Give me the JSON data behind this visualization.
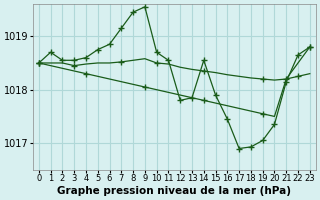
{
  "background_color": "#d8f0f0",
  "grid_color": "#b0d8d8",
  "line_color": "#1a5c1a",
  "marker_color": "#1a5c1a",
  "xlabel": "Graphe pression niveau de la mer (hPa)",
  "xlabel_fontsize": 7.5,
  "ylabel_fontsize": 7,
  "tick_fontsize": 6,
  "yticks": [
    1017,
    1018,
    1019
  ],
  "ylim": [
    1016.5,
    1019.6
  ],
  "xlim": [
    -0.5,
    23.5
  ],
  "series": [
    {
      "x": [
        0,
        1,
        2,
        3,
        4,
        5,
        6,
        7,
        8,
        9,
        10,
        11,
        12,
        13,
        14,
        15,
        16,
        17,
        18,
        19,
        20,
        21,
        22,
        23
      ],
      "y": [
        1018.5,
        1018.7,
        1018.55,
        1018.55,
        1018.6,
        1018.75,
        1018.85,
        1019.15,
        1019.45,
        1019.55,
        1018.7,
        1018.55,
        1017.8,
        1017.85,
        1018.55,
        1017.9,
        1017.45,
        1016.9,
        1016.93,
        1017.05,
        1017.35,
        1018.15,
        1018.65,
        1018.8
      ],
      "markers": [
        0,
        1,
        2,
        3,
        4,
        5,
        6,
        7,
        8,
        9,
        10,
        11,
        12,
        13,
        14,
        15,
        16,
        17,
        18,
        19,
        20,
        21,
        22,
        23
      ]
    },
    {
      "x": [
        0,
        1,
        2,
        3,
        4,
        5,
        6,
        7,
        8,
        9,
        10,
        11,
        12,
        13,
        14,
        15,
        16,
        17,
        18,
        19,
        20,
        21,
        22,
        23
      ],
      "y": [
        1018.5,
        1018.5,
        1018.5,
        1018.45,
        1018.48,
        1018.5,
        1018.5,
        1018.52,
        1018.55,
        1018.58,
        1018.5,
        1018.48,
        1018.42,
        1018.38,
        1018.35,
        1018.32,
        1018.28,
        1018.25,
        1018.22,
        1018.2,
        1018.18,
        1018.2,
        1018.25,
        1018.3
      ],
      "markers": [
        0,
        3,
        7,
        10,
        14,
        19,
        22
      ]
    },
    {
      "x": [
        0,
        1,
        2,
        3,
        4,
        5,
        6,
        7,
        8,
        9,
        10,
        11,
        12,
        13,
        14,
        15,
        16,
        17,
        18,
        19,
        20,
        21,
        22,
        23
      ],
      "y": [
        1018.5,
        1018.45,
        1018.4,
        1018.35,
        1018.3,
        1018.25,
        1018.2,
        1018.15,
        1018.1,
        1018.05,
        1018.0,
        1017.95,
        1017.9,
        1017.85,
        1017.8,
        1017.75,
        1017.7,
        1017.65,
        1017.6,
        1017.55,
        1017.5,
        1018.2,
        1018.5,
        1018.8
      ],
      "markers": [
        0,
        4,
        9,
        14,
        19,
        21,
        23
      ]
    }
  ],
  "xtick_labels": [
    "0",
    "1",
    "2",
    "3",
    "4",
    "5",
    "6",
    "7",
    "8",
    "9",
    "10",
    "11",
    "12",
    "13",
    "14",
    "15",
    "16",
    "17",
    "18",
    "19",
    "20",
    "21",
    "22",
    "23"
  ]
}
